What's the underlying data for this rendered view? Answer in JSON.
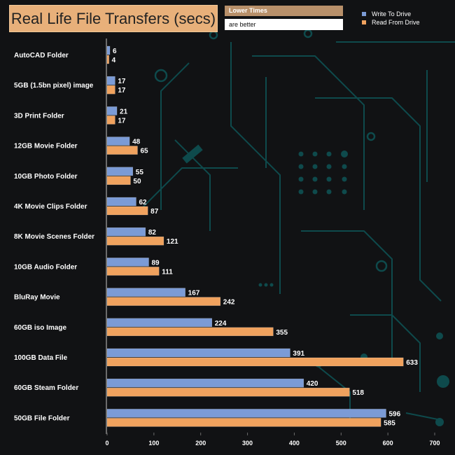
{
  "header": {
    "title": "Real Life File Transfers (secs)",
    "note_line1": "Lower Times",
    "note_line2": "are better"
  },
  "colors": {
    "write": "#7b9bd6",
    "read": "#f0a25e",
    "background": "#111214",
    "circuit": "#0e4a4c",
    "title_box": "#e8b07a"
  },
  "chart_data": {
    "type": "bar",
    "orientation": "horizontal",
    "title": "Real Life File Transfers (secs)",
    "categories": [
      "AutoCAD Folder",
      "5GB (1.5bn pixel) image",
      "3D Print Folder",
      "12GB Movie Folder",
      "10GB Photo Folder",
      "4K Movie Clips Folder",
      "8K Movie Scenes Folder",
      "10GB Audio Folder",
      "BluRay Movie",
      "60GB iso Image",
      "100GB Data File",
      "60GB Steam Folder",
      "50GB File Folder"
    ],
    "series": [
      {
        "name": "Write To  Drive",
        "color": "#7b9bd6",
        "values": [
          6,
          17,
          21,
          48,
          55,
          62,
          82,
          89,
          167,
          224,
          391,
          420,
          596
        ]
      },
      {
        "name": "Read From  Drive",
        "color": "#f0a25e",
        "values": [
          4,
          17,
          17,
          65,
          50,
          87,
          121,
          111,
          242,
          355,
          633,
          518,
          585
        ]
      }
    ],
    "xlim": [
      0,
      700
    ],
    "xticks": [
      0,
      100,
      200,
      300,
      400,
      500,
      600,
      700
    ],
    "grid": false,
    "legend_position": "top-right"
  }
}
